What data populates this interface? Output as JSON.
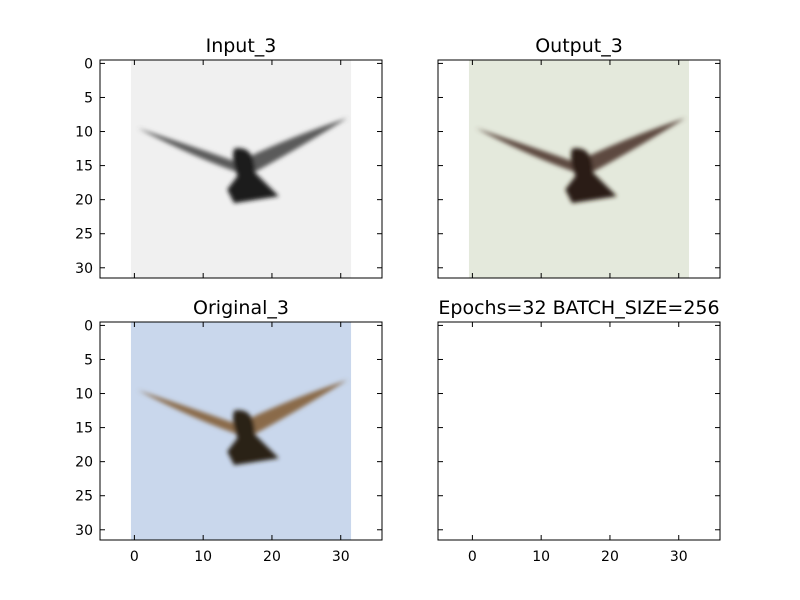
{
  "chart_data": [
    {
      "type": "image",
      "title": "Input_3",
      "xlim": [
        -5,
        36
      ],
      "ylim": [
        31.5,
        -0.5
      ],
      "image_extent": [
        -0.5,
        31.5
      ],
      "xticks": [],
      "yticks": [
        0,
        5,
        10,
        15,
        20,
        25,
        30
      ],
      "image": {
        "background": "#f0f0f0",
        "bird_wings": "#5a5a5a",
        "bird_body": "#1e1e1e",
        "tint": "grayscale"
      }
    },
    {
      "type": "image",
      "title": "Output_3",
      "xlim": [
        -5,
        36
      ],
      "ylim": [
        31.5,
        -0.5
      ],
      "image_extent": [
        -0.5,
        31.5
      ],
      "xticks": [],
      "yticks": [],
      "image": {
        "background": "#e4e9dc",
        "bird_wings": "#5d4a40",
        "bird_body": "#2a1a12",
        "tint": "noisy color reconstruction"
      }
    },
    {
      "type": "image",
      "title": "Original_3",
      "xlim": [
        -5,
        36
      ],
      "ylim": [
        31.5,
        -0.5
      ],
      "image_extent": [
        -0.5,
        31.5
      ],
      "xticks": [
        0,
        10,
        20,
        30
      ],
      "yticks": [
        0,
        5,
        10,
        15,
        20,
        25,
        30
      ],
      "image": {
        "background": "#c9d7ec",
        "bird_wings": "#8a6a4a",
        "bird_body": "#2a2418",
        "tint": "color"
      }
    },
    {
      "type": "empty",
      "title": "Epochs=32 BATCH_SIZE=256",
      "xlim": [
        -5,
        36
      ],
      "xticks": [
        0,
        10,
        20,
        30
      ],
      "yticks": []
    }
  ]
}
